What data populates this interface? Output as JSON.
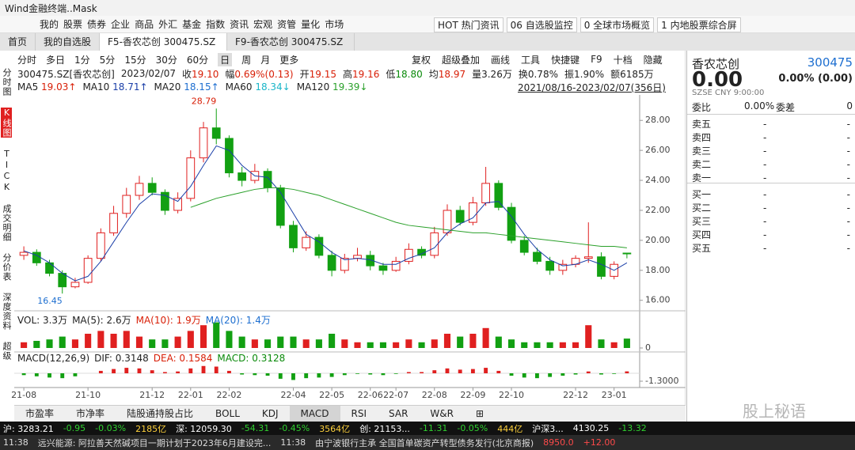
{
  "window": {
    "title": "Wind金融终端..Mask"
  },
  "menu": [
    "我的",
    "股票",
    "债券",
    "企业",
    "商品",
    "外汇",
    "基金",
    "指数",
    "资讯",
    "宏观",
    "资管",
    "量化",
    "市场"
  ],
  "quick_links": [
    "HOT 热门资讯",
    "06 自选股监控",
    "0 全球市场概览",
    "1 内地股票综合屏"
  ],
  "tabs": [
    "首页",
    "我的自选股",
    "F5-香农芯创 300475.SZ",
    "F9-香农芯创 300475.SZ"
  ],
  "side_nav": [
    "分时图",
    "K线图",
    "TICK",
    "成交明细",
    "分价表",
    "深度资料",
    "超级"
  ],
  "periods": [
    "分时",
    "多日",
    "1分",
    "5分",
    "15分",
    "30分",
    "60分",
    "日",
    "周",
    "月",
    "更多"
  ],
  "tools": [
    "复权",
    "超级叠加",
    "画线",
    "工具",
    "快捷键",
    "F9",
    "十档",
    "隐藏"
  ],
  "info": {
    "code": "300475.SZ[香农芯创]",
    "date": "2023/02/07",
    "fields": [
      {
        "label": "收",
        "value": "19.10",
        "color": "#d81e06"
      },
      {
        "label": "幅",
        "value": "0.69%(0.13)",
        "color": "#d81e06"
      },
      {
        "label": "开",
        "value": "19.15",
        "color": "#d81e06"
      },
      {
        "label": "高",
        "value": "19.16",
        "color": "#d81e06"
      },
      {
        "label": "低",
        "value": "18.80",
        "color": "#0a8a0a"
      },
      {
        "label": "均",
        "value": "18.97",
        "color": "#d81e06"
      },
      {
        "label": "量",
        "value": "3.26万",
        "color": "#222222"
      },
      {
        "label": "换",
        "value": "0.78%",
        "color": "#222222"
      },
      {
        "label": "振",
        "value": "1.90%",
        "color": "#222222"
      },
      {
        "label": "额",
        "value": "6185万",
        "color": "#222222"
      }
    ],
    "range": "2021/08/16-2023/02/07(356日)"
  },
  "chart_data": {
    "type": "candlestick",
    "categories": [
      "21-08",
      null,
      null,
      null,
      null,
      "21-10",
      null,
      null,
      null,
      null,
      "21-12",
      null,
      null,
      "22-01",
      null,
      null,
      "22-02",
      null,
      null,
      null,
      null,
      "22-04",
      null,
      null,
      "22-05",
      null,
      null,
      "22-06",
      null,
      "22-07",
      null,
      null,
      "22-08",
      null,
      null,
      "22-09",
      null,
      null,
      "22-10",
      null,
      null,
      null,
      null,
      "22-12",
      null,
      null,
      "23-01",
      null
    ],
    "open": [
      19.0,
      19.2,
      18.5,
      17.8,
      16.9,
      17.2,
      18.8,
      20.5,
      21.8,
      23.0,
      23.8,
      23.2,
      22.0,
      22.8,
      25.5,
      27.5,
      26.8,
      24.5,
      24.0,
      24.6,
      23.5,
      21.0,
      19.5,
      20.2,
      19.0,
      18.0,
      18.8,
      19.0,
      18.3,
      18.0,
      18.6,
      19.4,
      19.0,
      20.5,
      22.0,
      21.2,
      22.5,
      23.8,
      22.2,
      20.0,
      19.2,
      18.6,
      18.0,
      18.4,
      18.8,
      18.9,
      17.6,
      19.15
    ],
    "high": [
      19.6,
      19.4,
      18.7,
      18.0,
      17.5,
      19.0,
      20.8,
      22.3,
      23.5,
      24.3,
      24.2,
      23.4,
      23.2,
      26.0,
      27.9,
      28.79,
      27.0,
      24.9,
      25.1,
      24.8,
      23.7,
      21.3,
      20.6,
      20.4,
      19.3,
      19.1,
      19.5,
      19.3,
      18.5,
      18.9,
      19.8,
      19.6,
      20.9,
      22.4,
      22.3,
      22.9,
      24.9,
      24.0,
      22.5,
      20.3,
      19.5,
      18.9,
      18.7,
      19.0,
      21.2,
      19.2,
      18.6,
      19.16
    ],
    "low": [
      18.7,
      18.3,
      17.6,
      16.45,
      16.8,
      17.1,
      18.6,
      20.3,
      21.5,
      22.7,
      23.0,
      21.7,
      21.8,
      22.6,
      25.2,
      26.4,
      24.2,
      23.6,
      23.8,
      23.2,
      20.8,
      19.2,
      19.3,
      18.8,
      17.6,
      17.8,
      18.6,
      18.0,
      17.7,
      17.9,
      18.4,
      18.8,
      18.8,
      20.3,
      21.0,
      21.0,
      22.3,
      22.0,
      19.8,
      19.0,
      18.4,
      17.7,
      17.7,
      18.2,
      18.5,
      17.4,
      17.4,
      18.8
    ],
    "close": [
      19.2,
      18.5,
      17.8,
      16.9,
      17.2,
      18.8,
      20.5,
      21.8,
      23.0,
      23.8,
      23.2,
      22.0,
      22.8,
      25.5,
      27.5,
      26.8,
      24.5,
      24.0,
      24.6,
      23.5,
      21.0,
      19.5,
      20.2,
      19.0,
      18.0,
      18.8,
      19.0,
      18.3,
      18.0,
      18.6,
      19.4,
      19.0,
      20.5,
      22.0,
      21.2,
      22.5,
      23.8,
      22.2,
      20.0,
      19.2,
      18.6,
      18.0,
      18.4,
      18.8,
      18.9,
      17.6,
      18.4,
      19.1
    ],
    "up_color": "#e02020",
    "down_color": "#12a012",
    "ylim": [
      15.3,
      29.7
    ],
    "yticks": [
      {
        "value": 16,
        "label": "16.00"
      },
      {
        "value": 18,
        "label": "18.00"
      },
      {
        "value": 20,
        "label": "20.00"
      },
      {
        "value": 22,
        "label": "22.00"
      },
      {
        "value": 24,
        "label": "24.00"
      },
      {
        "value": 26,
        "label": "26.00"
      },
      {
        "value": 28,
        "label": "28.00"
      }
    ],
    "series": [
      {
        "name": "MA5",
        "reading": "19.03↑",
        "color": "#d81e06"
      },
      {
        "name": "MA10",
        "reading": "18.71↑",
        "color": "#1b3fa8",
        "values": [
          19.3,
          19.0,
          18.5,
          17.8,
          17.3,
          17.6,
          18.6,
          19.9,
          21.2,
          22.4,
          23.1,
          23.0,
          22.6,
          23.6,
          25.0,
          26.3,
          26.0,
          25.0,
          24.3,
          24.2,
          23.2,
          21.8,
          20.4,
          19.9,
          19.2,
          18.7,
          18.8,
          18.7,
          18.4,
          18.4,
          18.8,
          19.1,
          19.5,
          20.5,
          21.1,
          21.5,
          22.5,
          22.6,
          21.6,
          20.4,
          19.4,
          18.7,
          18.3,
          18.4,
          18.7,
          18.4,
          18.0,
          18.5
        ]
      },
      {
        "name": "MA20",
        "reading": "18.15↑",
        "color": "#1e6fd0"
      },
      {
        "name": "MA60",
        "reading": "18.34↓",
        "color": "#19b5c8"
      },
      {
        "name": "MA120",
        "reading": "19.39↓",
        "color": "#2aa02a",
        "values": [
          null,
          null,
          null,
          null,
          null,
          null,
          null,
          null,
          null,
          null,
          null,
          null,
          null,
          22.2,
          22.5,
          22.8,
          23.0,
          23.2,
          23.4,
          23.5,
          23.5,
          23.4,
          23.2,
          23.0,
          22.7,
          22.4,
          22.1,
          21.8,
          21.5,
          21.2,
          21.0,
          20.9,
          20.8,
          20.7,
          20.6,
          20.5,
          20.5,
          20.4,
          20.3,
          20.2,
          20.1,
          20.0,
          19.9,
          19.8,
          19.7,
          19.6,
          19.6,
          19.5
        ]
      }
    ],
    "volume": {
      "legend": [
        {
          "text": "VOL: 3.3万",
          "color": "#222222"
        },
        {
          "text": "MA(5): 2.6万",
          "color": "#222222"
        },
        {
          "text": "MA(10): 1.9万",
          "color": "#d81e06"
        },
        {
          "text": "MA(20): 1.4万",
          "color": "#1e6fd0"
        }
      ],
      "values": [
        2,
        2.5,
        3,
        4,
        3,
        5,
        6,
        5,
        6,
        4,
        3,
        3,
        4,
        6,
        8,
        9,
        6,
        4,
        3,
        3,
        4,
        4,
        3,
        3,
        5,
        3,
        2,
        2,
        2,
        2,
        3,
        2,
        3,
        5,
        4,
        5,
        7,
        4,
        3,
        2,
        2,
        2,
        2,
        2,
        8,
        3,
        2,
        3.3
      ],
      "ylim": [
        0,
        10
      ],
      "yticks": [
        0
      ]
    },
    "macd": {
      "legend": [
        {
          "text": "MACD(12,26,9)",
          "color": "#222222"
        },
        {
          "text": "DIF: 0.3148",
          "color": "#222222"
        },
        {
          "text": "DEA: 0.1584",
          "color": "#d81e06"
        },
        {
          "text": "MACD: 0.3128",
          "color": "#0a8a0a"
        }
      ],
      "values": [
        -0.3,
        -0.5,
        -0.7,
        -0.8,
        -0.5,
        0,
        0.4,
        0.7,
        0.9,
        0.8,
        0.5,
        0.2,
        0.3,
        0.8,
        1.2,
        1.1,
        0.4,
        -0.2,
        -0.3,
        -0.4,
        -0.9,
        -1.1,
        -0.8,
        -0.7,
        -0.6,
        -0.3,
        -0.1,
        -0.2,
        -0.3,
        -0.1,
        0.2,
        0.2,
        0.5,
        0.8,
        0.6,
        0.7,
        0.9,
        0.4,
        -0.4,
        -0.7,
        -0.8,
        -0.6,
        -0.4,
        -0.2,
        0.3,
        -0.2,
        -0.1,
        0.3128
      ],
      "ylim": [
        -1.3,
        2.86
      ],
      "yticks": [
        {
          "value": -1.3,
          "label": "-1.3000"
        }
      ]
    }
  },
  "indicator_tabs": [
    "市盈率",
    "市净率",
    "陆股通持股占比",
    "BOLL",
    "KDJ",
    "MACD",
    "RSI",
    "SAR",
    "W&R",
    "⊞"
  ],
  "status": [
    {
      "text": "沪: 3283.21",
      "color": "#ffffff"
    },
    {
      "text": "-0.95",
      "color": "#2fd02f"
    },
    {
      "text": "-0.03%",
      "color": "#2fd02f"
    },
    {
      "text": "2185亿",
      "color": "#ffd23c"
    },
    {
      "text": "深: 12059.30",
      "color": "#ffffff"
    },
    {
      "text": "-54.31",
      "color": "#2fd02f"
    },
    {
      "text": "-0.45%",
      "color": "#2fd02f"
    },
    {
      "text": "3564亿",
      "color": "#ffd23c"
    },
    {
      "text": "创: 21153...",
      "color": "#ffffff"
    },
    {
      "text": "-11.31",
      "color": "#2fd02f"
    },
    {
      "text": "-0.05%",
      "color": "#2fd02f"
    },
    {
      "text": "444亿",
      "color": "#ffd23c"
    },
    {
      "text": "沪深3...",
      "color": "#ffffff"
    },
    {
      "text": "4130.25",
      "color": "#ffffff"
    },
    {
      "text": "-13.32",
      "color": "#2fd02f"
    }
  ],
  "news": [
    {
      "text": "11:38",
      "color": "#dddddd"
    },
    {
      "text": "远兴能源: 阿拉善天然碱项目一期计划于2023年6月建设完...",
      "color": "#dddddd"
    },
    {
      "text": "11:38",
      "color": "#dddddd"
    },
    {
      "text": "由宁波银行主承 全国首单碳资产转型债务发行(北京商报)",
      "color": "#dddddd"
    },
    {
      "text": "8950.0",
      "color": "#ff4a4a"
    },
    {
      "text": "+12.00",
      "color": "#ff4a4a"
    }
  ],
  "quote": {
    "name": "香农芯创",
    "code": "300475",
    "price": "0.00",
    "change": "0.00% (0.00)",
    "meta": "SZSE  CNY  9:00:00",
    "ratio_label": "委比",
    "ratio": "0.00%",
    "diff_label": "委差",
    "diff": "0",
    "book": [
      [
        "卖五",
        "-",
        "-"
      ],
      [
        "卖四",
        "-",
        "-"
      ],
      [
        "卖三",
        "-",
        "-"
      ],
      [
        "卖二",
        "-",
        "-"
      ],
      [
        "卖一",
        "-",
        "-"
      ],
      [
        "买一",
        "-",
        "-"
      ],
      [
        "买二",
        "-",
        "-"
      ],
      [
        "买三",
        "-",
        "-"
      ],
      [
        "买四",
        "-",
        "-"
      ],
      [
        "买五",
        "-",
        "-"
      ]
    ],
    "watermark": "股上秘语"
  }
}
